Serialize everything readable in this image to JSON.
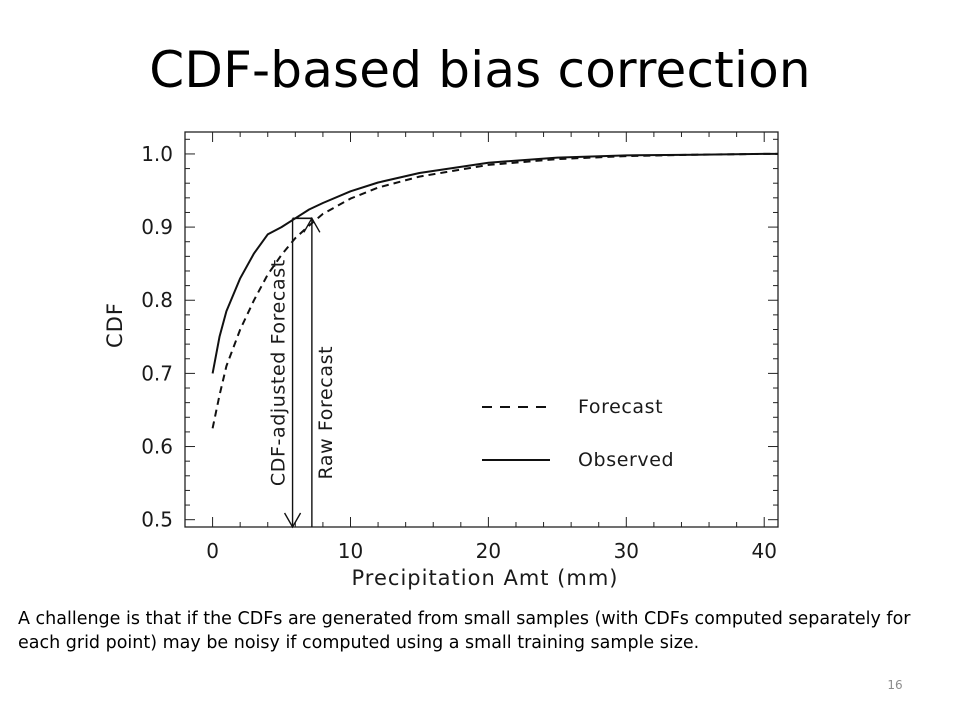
{
  "slide": {
    "title": "CDF-based bias correction",
    "caption": "A challenge is that if the CDFs are generated from small samples (with CDFs computed separately for each grid point) may be noisy if computed using a small training sample size.",
    "page_number": "16"
  },
  "chart_data": {
    "type": "line",
    "xlabel": "Precipitation Amt (mm)",
    "ylabel": "CDF",
    "xlim": [
      -2,
      41
    ],
    "ylim": [
      0.49,
      1.03
    ],
    "x_ticks": [
      0,
      10,
      20,
      30,
      40
    ],
    "y_ticks": [
      0.5,
      0.6,
      0.7,
      0.8,
      0.9,
      1.0
    ],
    "y_tick_labels": [
      "0.5",
      "0.6",
      "0.7",
      "0.8",
      "0.9",
      "1.0"
    ],
    "grid": false,
    "legend_position": "lower-right",
    "series": [
      {
        "name": "Forecast",
        "style": "dashed",
        "x": [
          0,
          0.5,
          1,
          2,
          3,
          4,
          5,
          6,
          7,
          8,
          10,
          12,
          15,
          20,
          25,
          30,
          35,
          40,
          41
        ],
        "y": [
          0.625,
          0.67,
          0.71,
          0.76,
          0.8,
          0.835,
          0.862,
          0.885,
          0.902,
          0.918,
          0.939,
          0.954,
          0.969,
          0.985,
          0.993,
          0.997,
          0.999,
          1.0,
          1.0
        ]
      },
      {
        "name": "Observed",
        "style": "solid",
        "x": [
          0,
          0.5,
          1,
          2,
          3,
          4,
          5,
          6,
          7,
          8,
          10,
          12,
          15,
          20,
          25,
          30,
          35,
          40,
          41
        ],
        "y": [
          0.7,
          0.75,
          0.785,
          0.83,
          0.864,
          0.89,
          0.9,
          0.912,
          0.924,
          0.933,
          0.949,
          0.961,
          0.974,
          0.988,
          0.995,
          0.998,
          0.999,
          1.0,
          1.0
        ]
      }
    ],
    "annotations": [
      {
        "text": "CDF-adjusted Forecast",
        "x": 5.8,
        "y_from": 0.912,
        "y_to": 0.49,
        "arrow_at": "bottom"
      },
      {
        "text": "Raw Forecast",
        "x": 7.2,
        "y_from": 0.49,
        "y_to": 0.912,
        "arrow_at": "top"
      }
    ],
    "connector": {
      "from_x": 5.8,
      "to_x": 7.2,
      "y": 0.912
    }
  }
}
